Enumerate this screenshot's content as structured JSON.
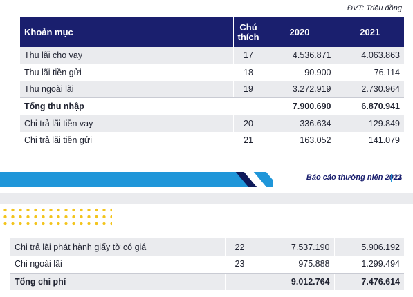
{
  "unit_note": "ĐVT: Triệu đồng",
  "top_table": {
    "headers": [
      "Khoản mục",
      "Chú",
      "thích",
      "2020",
      "2021"
    ],
    "rows": [
      {
        "item": "Thu lãi cho vay",
        "note": "17",
        "y2020": "4.536.871",
        "y2021": "4.063.863"
      },
      {
        "item": "Thu lãi tiền gửi",
        "note": "18",
        "y2020": "90.900",
        "y2021": "76.114"
      },
      {
        "item": "Thu ngoài lãi",
        "note": "19",
        "y2020": "3.272.919",
        "y2021": "2.730.964"
      },
      {
        "item": "Tổng thu nhập",
        "note": "",
        "y2020": "7.900.690",
        "y2021": "6.870.941"
      },
      {
        "item": "Chi trả lãi tiền vay",
        "note": "20",
        "y2020": "336.634",
        "y2021": "129.849"
      },
      {
        "item": "Chi trả lãi tiền gửi",
        "note": "21",
        "y2020": "163.052",
        "y2021": "141.079"
      }
    ]
  },
  "footer": {
    "report_title": "Báo cáo thường niên 2021",
    "page_number": "13"
  },
  "bottom_table": {
    "rows": [
      {
        "item": "Chi trả lãi phát hành giấy tờ có giá",
        "note": "22",
        "y2020": "7.537.190",
        "y2021": "5.906.192"
      },
      {
        "item": "Chi ngoài lãi",
        "note": "23",
        "y2020": "975.888",
        "y2021": "1.299.494"
      },
      {
        "item": "Tổng chi phí",
        "note": "",
        "y2020": "9.012.764",
        "y2021": "7.476.614"
      }
    ]
  },
  "colors": {
    "header_navy": "#1a1f6e",
    "accent_blue": "#1f96d9",
    "row_shade": "#eaebee",
    "dot_yellow": "#f3c41c"
  }
}
